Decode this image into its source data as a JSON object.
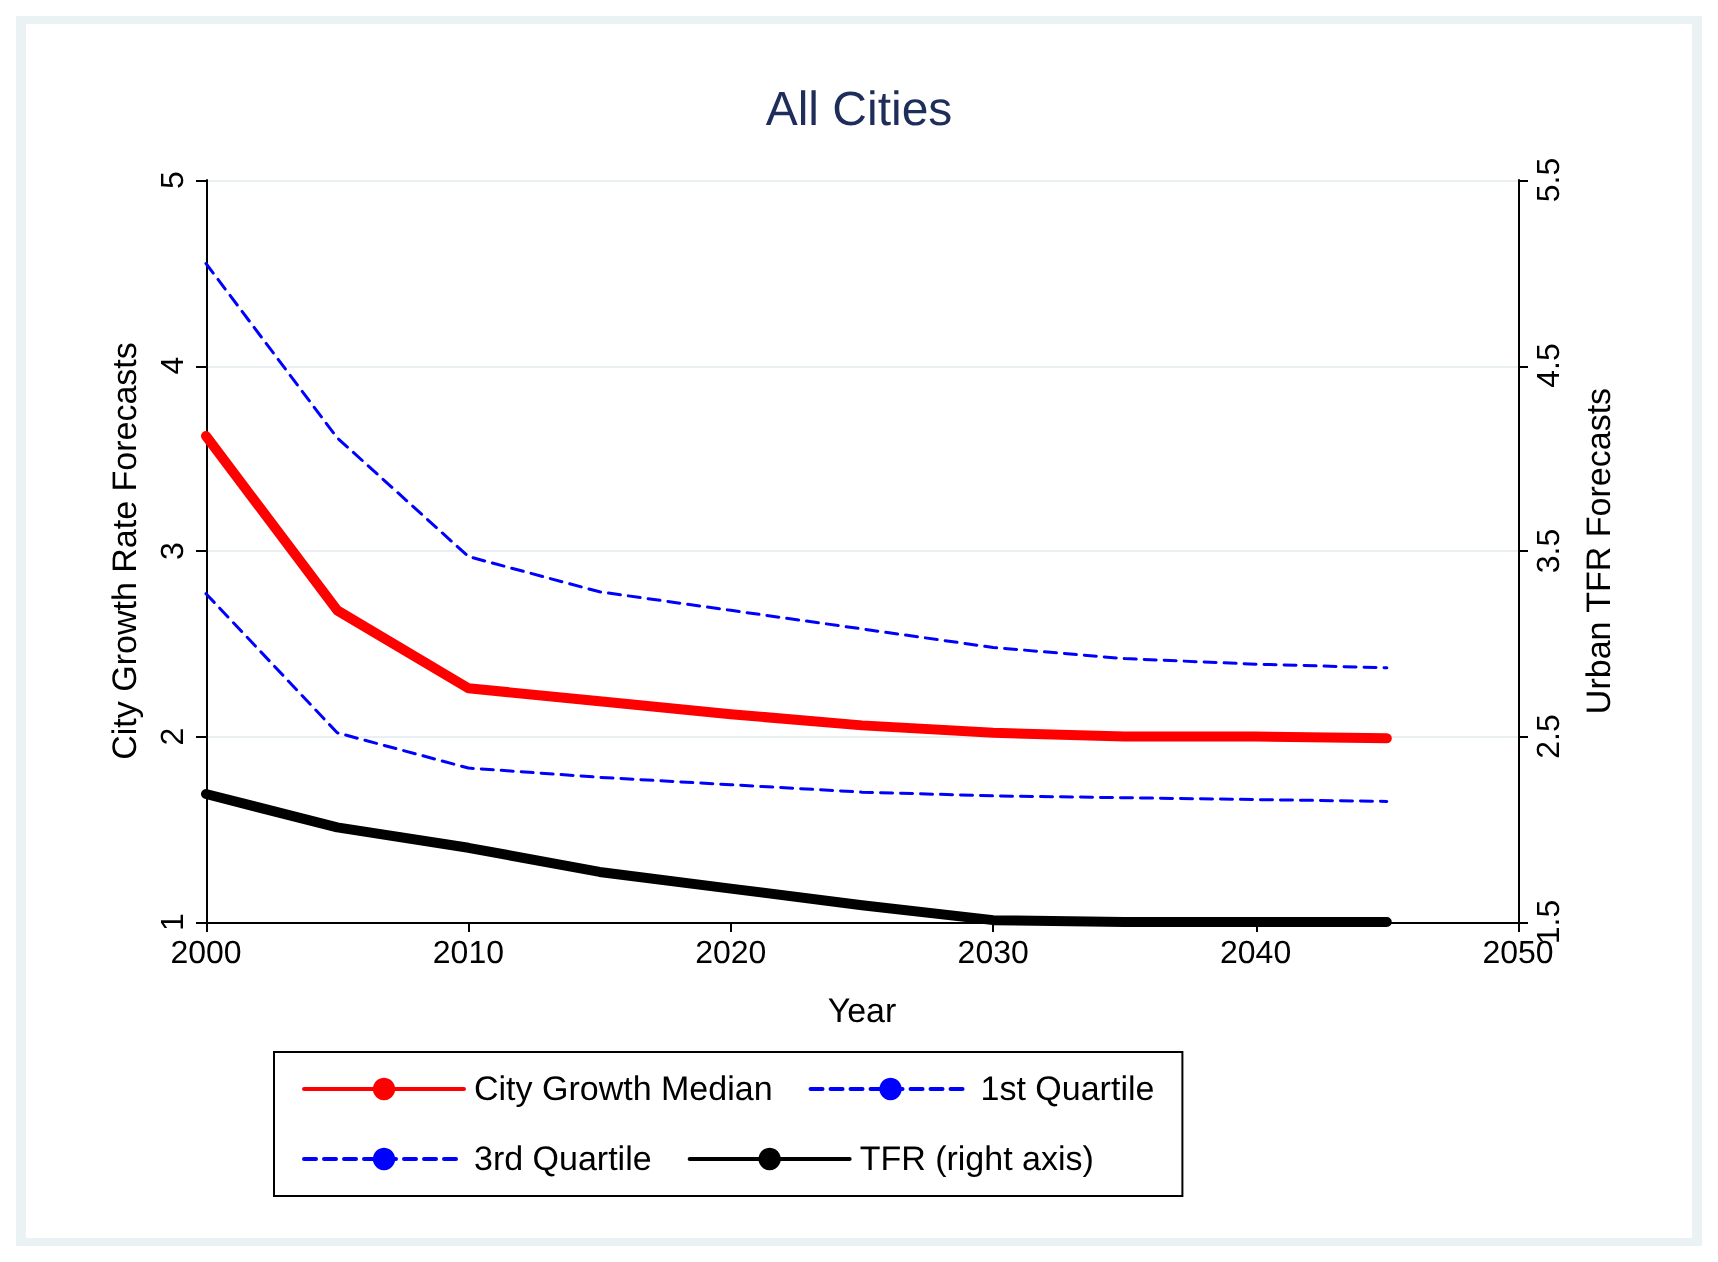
{
  "chart_data": {
    "type": "line",
    "title": "All Cities",
    "xlabel": "Year",
    "ylabel": "City Growth Rate Forecasts",
    "y2label": "Urban TFR Forecasts",
    "x": [
      2000,
      2005,
      2010,
      2015,
      2020,
      2025,
      2030,
      2035,
      2040,
      2045
    ],
    "xlim": [
      2000,
      2050
    ],
    "xticks": [
      2000,
      2010,
      2020,
      2030,
      2040,
      2050
    ],
    "ylim": [
      1,
      5
    ],
    "yticks": [
      1,
      2,
      3,
      4,
      5
    ],
    "y2lim": [
      1.5,
      5.5
    ],
    "y2ticks": [
      1.5,
      2.5,
      3.5,
      4.5,
      5.5
    ],
    "grid": "y",
    "legend": "bottom",
    "marker": "none",
    "series": [
      {
        "name": "City Growth Median",
        "color": "#ff0000",
        "line_style": "solid",
        "values": [
          3.62,
          2.68,
          2.26,
          2.19,
          2.12,
          2.06,
          2.02,
          2.0,
          2.0,
          1.99
        ]
      },
      {
        "name": "1st Quartile",
        "color": "#0000ff",
        "line_style": "dashed",
        "values": [
          2.77,
          2.02,
          1.83,
          1.78,
          1.74,
          1.7,
          1.68,
          1.67,
          1.66,
          1.65
        ]
      },
      {
        "name": "3rd Quartile",
        "color": "#0000ff",
        "line_style": "dashed",
        "values": [
          4.55,
          3.61,
          2.97,
          2.78,
          2.68,
          2.58,
          2.48,
          2.42,
          2.39,
          2.37
        ]
      },
      {
        "name": "TFR (right axis)",
        "color": "#000000",
        "line_style": "solid",
        "axis": "y2",
        "values": [
          2.19,
          2.01,
          1.9,
          1.77,
          1.68,
          1.59,
          1.51,
          1.5,
          1.5,
          1.5
        ]
      }
    ]
  }
}
